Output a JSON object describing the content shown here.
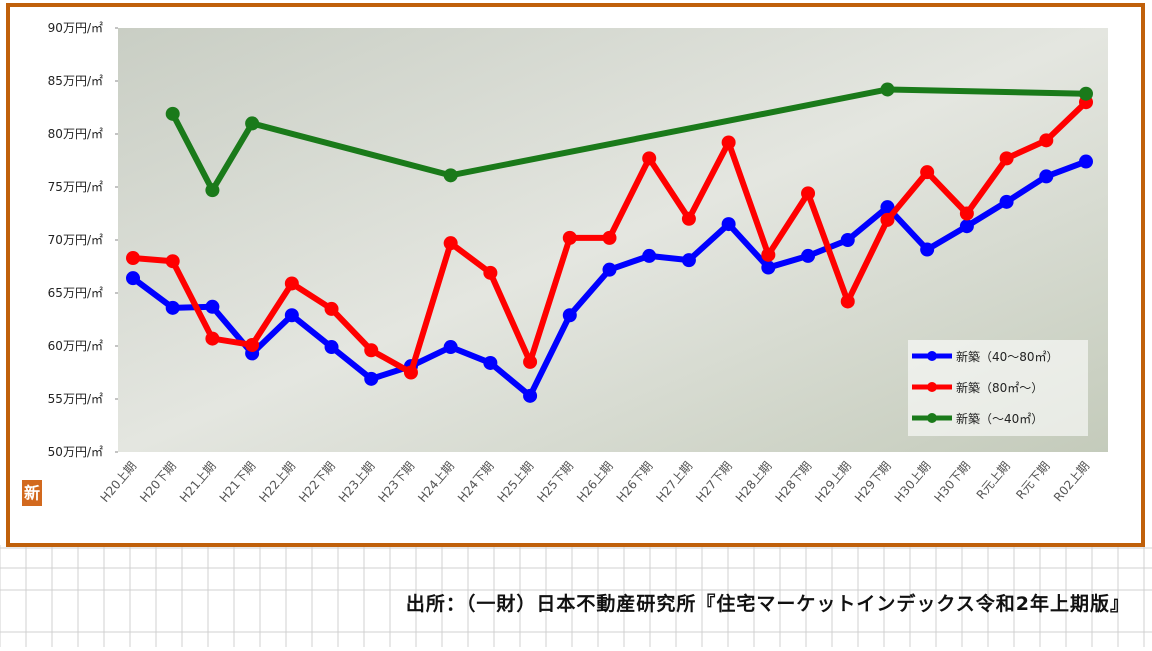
{
  "chart_data": {
    "type": "line",
    "categories": [
      "H20上期",
      "H20下期",
      "H21上期",
      "H21下期",
      "H22上期",
      "H22下期",
      "H23上期",
      "H23下期",
      "H24上期",
      "H24下期",
      "H25上期",
      "H25下期",
      "H26上期",
      "H26下期",
      "H27上期",
      "H27下期",
      "H28上期",
      "H28下期",
      "H29上期",
      "H29下期",
      "H30上期",
      "H30下期",
      "R元上期",
      "R元下期",
      "R02上期"
    ],
    "series": [
      {
        "name": "新築（40～80㎡）",
        "color": "#0000ff",
        "values": [
          66.4,
          63.6,
          63.7,
          59.3,
          62.9,
          59.9,
          56.9,
          58.1,
          59.9,
          58.4,
          55.3,
          62.9,
          67.2,
          68.5,
          68.1,
          71.5,
          67.4,
          68.5,
          70.0,
          73.1,
          69.1,
          71.3,
          73.6,
          76.0,
          77.4
        ]
      },
      {
        "name": "新築（80㎡～）",
        "color": "#ff0000",
        "values": [
          68.3,
          68.0,
          60.7,
          60.1,
          65.9,
          63.5,
          59.6,
          57.5,
          69.7,
          66.9,
          58.5,
          70.2,
          70.2,
          77.7,
          72.0,
          79.2,
          68.6,
          74.4,
          64.2,
          71.9,
          76.4,
          72.5,
          77.7,
          79.4,
          83.0
        ]
      },
      {
        "name": "新築（～40㎡）",
        "color": "#1a7a1a",
        "values": [
          null,
          81.9,
          74.7,
          81.0,
          null,
          null,
          null,
          null,
          76.1,
          null,
          null,
          null,
          null,
          null,
          null,
          null,
          null,
          null,
          null,
          84.2,
          null,
          null,
          null,
          null,
          83.8
        ]
      }
    ],
    "connect_gaps": true,
    "ylim": [
      50,
      90
    ],
    "yticks": [
      {
        "value": 50,
        "label": "50万円/㎡"
      },
      {
        "value": 55,
        "label": "55万円/㎡"
      },
      {
        "value": 60,
        "label": "60万円/㎡"
      },
      {
        "value": 65,
        "label": "65万円/㎡"
      },
      {
        "value": 70,
        "label": "70万円/㎡"
      },
      {
        "value": 75,
        "label": "75万円/㎡"
      },
      {
        "value": 80,
        "label": "80万円/㎡"
      },
      {
        "value": 85,
        "label": "85万円/㎡"
      },
      {
        "value": 90,
        "label": "90万円/㎡"
      }
    ],
    "legend_position": "lower right",
    "logo": "新",
    "source": "出所：（一財）日本不動産研究所『住宅マーケットインデックス令和2年上期版』"
  }
}
